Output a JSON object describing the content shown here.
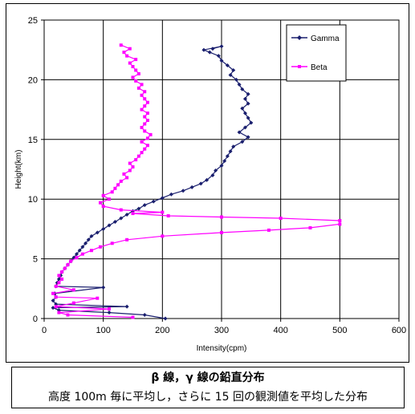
{
  "chart_data": {
    "type": "line",
    "xlabel": "Intensity(cpm)",
    "ylabel": "Height(km)",
    "xlim": [
      0,
      600
    ],
    "ylim": [
      0,
      25
    ],
    "xticks": [
      "0",
      "100",
      "200",
      "300",
      "400",
      "500",
      "600"
    ],
    "yticks": [
      "0",
      "5",
      "10",
      "15",
      "20",
      "25"
    ],
    "grid": true,
    "legend_placement": "top-right",
    "series": [
      {
        "name": "Gamma",
        "color": "#1a1f6e",
        "marker": "diamond",
        "points": [
          [
            205,
            0.0
          ],
          [
            170,
            0.3
          ],
          [
            110,
            0.5
          ],
          [
            25,
            0.7
          ],
          [
            15,
            0.9
          ],
          [
            140,
            1.0
          ],
          [
            20,
            1.2
          ],
          [
            15,
            1.5
          ],
          [
            20,
            1.8
          ],
          [
            18,
            2.1
          ],
          [
            100,
            2.6
          ],
          [
            20,
            2.7
          ],
          [
            22,
            3.0
          ],
          [
            25,
            3.3
          ],
          [
            28,
            3.6
          ],
          [
            30,
            3.9
          ],
          [
            35,
            4.2
          ],
          [
            40,
            4.5
          ],
          [
            45,
            4.8
          ],
          [
            50,
            5.1
          ],
          [
            55,
            5.4
          ],
          [
            60,
            5.7
          ],
          [
            65,
            6.0
          ],
          [
            70,
            6.3
          ],
          [
            75,
            6.6
          ],
          [
            80,
            6.9
          ],
          [
            90,
            7.2
          ],
          [
            100,
            7.5
          ],
          [
            110,
            7.8
          ],
          [
            120,
            8.1
          ],
          [
            130,
            8.4
          ],
          [
            140,
            8.7
          ],
          [
            150,
            9.0
          ],
          [
            160,
            9.2
          ],
          [
            170,
            9.5
          ],
          [
            185,
            9.8
          ],
          [
            200,
            10.1
          ],
          [
            215,
            10.4
          ],
          [
            235,
            10.7
          ],
          [
            250,
            11.0
          ],
          [
            265,
            11.3
          ],
          [
            275,
            11.6
          ],
          [
            285,
            12.0
          ],
          [
            290,
            12.4
          ],
          [
            300,
            12.8
          ],
          [
            305,
            13.2
          ],
          [
            310,
            13.6
          ],
          [
            315,
            14.0
          ],
          [
            320,
            14.4
          ],
          [
            335,
            14.8
          ],
          [
            345,
            15.2
          ],
          [
            330,
            15.6
          ],
          [
            340,
            16.0
          ],
          [
            350,
            16.4
          ],
          [
            345,
            16.8
          ],
          [
            340,
            17.2
          ],
          [
            335,
            17.6
          ],
          [
            345,
            18.0
          ],
          [
            340,
            18.4
          ],
          [
            345,
            18.8
          ],
          [
            335,
            19.2
          ],
          [
            330,
            19.6
          ],
          [
            325,
            20.0
          ],
          [
            315,
            20.4
          ],
          [
            320,
            20.8
          ],
          [
            310,
            21.2
          ],
          [
            300,
            21.6
          ],
          [
            295,
            22.0
          ],
          [
            280,
            22.3
          ],
          [
            270,
            22.5
          ],
          [
            300,
            22.8
          ],
          [
            285,
            22.6
          ]
        ]
      },
      {
        "name": "Beta",
        "color": "#ff00ff",
        "marker": "square",
        "points": [
          [
            150,
            0.1
          ],
          [
            40,
            0.3
          ],
          [
            25,
            0.5
          ],
          [
            110,
            0.8
          ],
          [
            20,
            1.0
          ],
          [
            50,
            1.3
          ],
          [
            90,
            1.7
          ],
          [
            20,
            1.8
          ],
          [
            15,
            2.1
          ],
          [
            50,
            2.4
          ],
          [
            20,
            2.7
          ],
          [
            25,
            3.0
          ],
          [
            30,
            3.3
          ],
          [
            25,
            3.6
          ],
          [
            30,
            3.9
          ],
          [
            35,
            4.2
          ],
          [
            40,
            4.5
          ],
          [
            45,
            4.8
          ],
          [
            55,
            5.1
          ],
          [
            65,
            5.4
          ],
          [
            80,
            5.7
          ],
          [
            95,
            6.0
          ],
          [
            115,
            6.3
          ],
          [
            140,
            6.6
          ],
          [
            200,
            6.9
          ],
          [
            300,
            7.2
          ],
          [
            380,
            7.4
          ],
          [
            450,
            7.6
          ],
          [
            500,
            7.9
          ],
          [
            500,
            8.2
          ],
          [
            400,
            8.4
          ],
          [
            300,
            8.5
          ],
          [
            210,
            8.6
          ],
          [
            150,
            8.8
          ],
          [
            200,
            8.9
          ],
          [
            130,
            9.1
          ],
          [
            100,
            9.4
          ],
          [
            95,
            9.7
          ],
          [
            110,
            10.0
          ],
          [
            100,
            10.3
          ],
          [
            115,
            10.6
          ],
          [
            120,
            10.9
          ],
          [
            125,
            11.2
          ],
          [
            130,
            11.5
          ],
          [
            140,
            11.8
          ],
          [
            135,
            12.1
          ],
          [
            145,
            12.4
          ],
          [
            150,
            12.7
          ],
          [
            145,
            13.0
          ],
          [
            155,
            13.3
          ],
          [
            160,
            13.6
          ],
          [
            165,
            13.9
          ],
          [
            170,
            14.2
          ],
          [
            175,
            14.5
          ],
          [
            165,
            14.8
          ],
          [
            175,
            15.1
          ],
          [
            180,
            15.4
          ],
          [
            170,
            15.7
          ],
          [
            165,
            16.0
          ],
          [
            170,
            16.3
          ],
          [
            175,
            16.6
          ],
          [
            170,
            16.9
          ],
          [
            175,
            17.2
          ],
          [
            165,
            17.5
          ],
          [
            170,
            17.8
          ],
          [
            175,
            18.1
          ],
          [
            170,
            18.4
          ],
          [
            165,
            18.7
          ],
          [
            170,
            19.0
          ],
          [
            160,
            19.3
          ],
          [
            165,
            19.6
          ],
          [
            155,
            19.9
          ],
          [
            150,
            20.2
          ],
          [
            160,
            20.5
          ],
          [
            155,
            20.8
          ],
          [
            150,
            21.1
          ],
          [
            145,
            21.4
          ],
          [
            155,
            21.7
          ],
          [
            140,
            22.0
          ],
          [
            135,
            22.3
          ],
          [
            145,
            22.6
          ],
          [
            130,
            22.9
          ]
        ]
      }
    ]
  },
  "caption": {
    "line1": "β 線，γ 線の鉛直分布",
    "line2": "高度 100m 毎に平均し，さらに 15 回の観測値を平均した分布"
  }
}
